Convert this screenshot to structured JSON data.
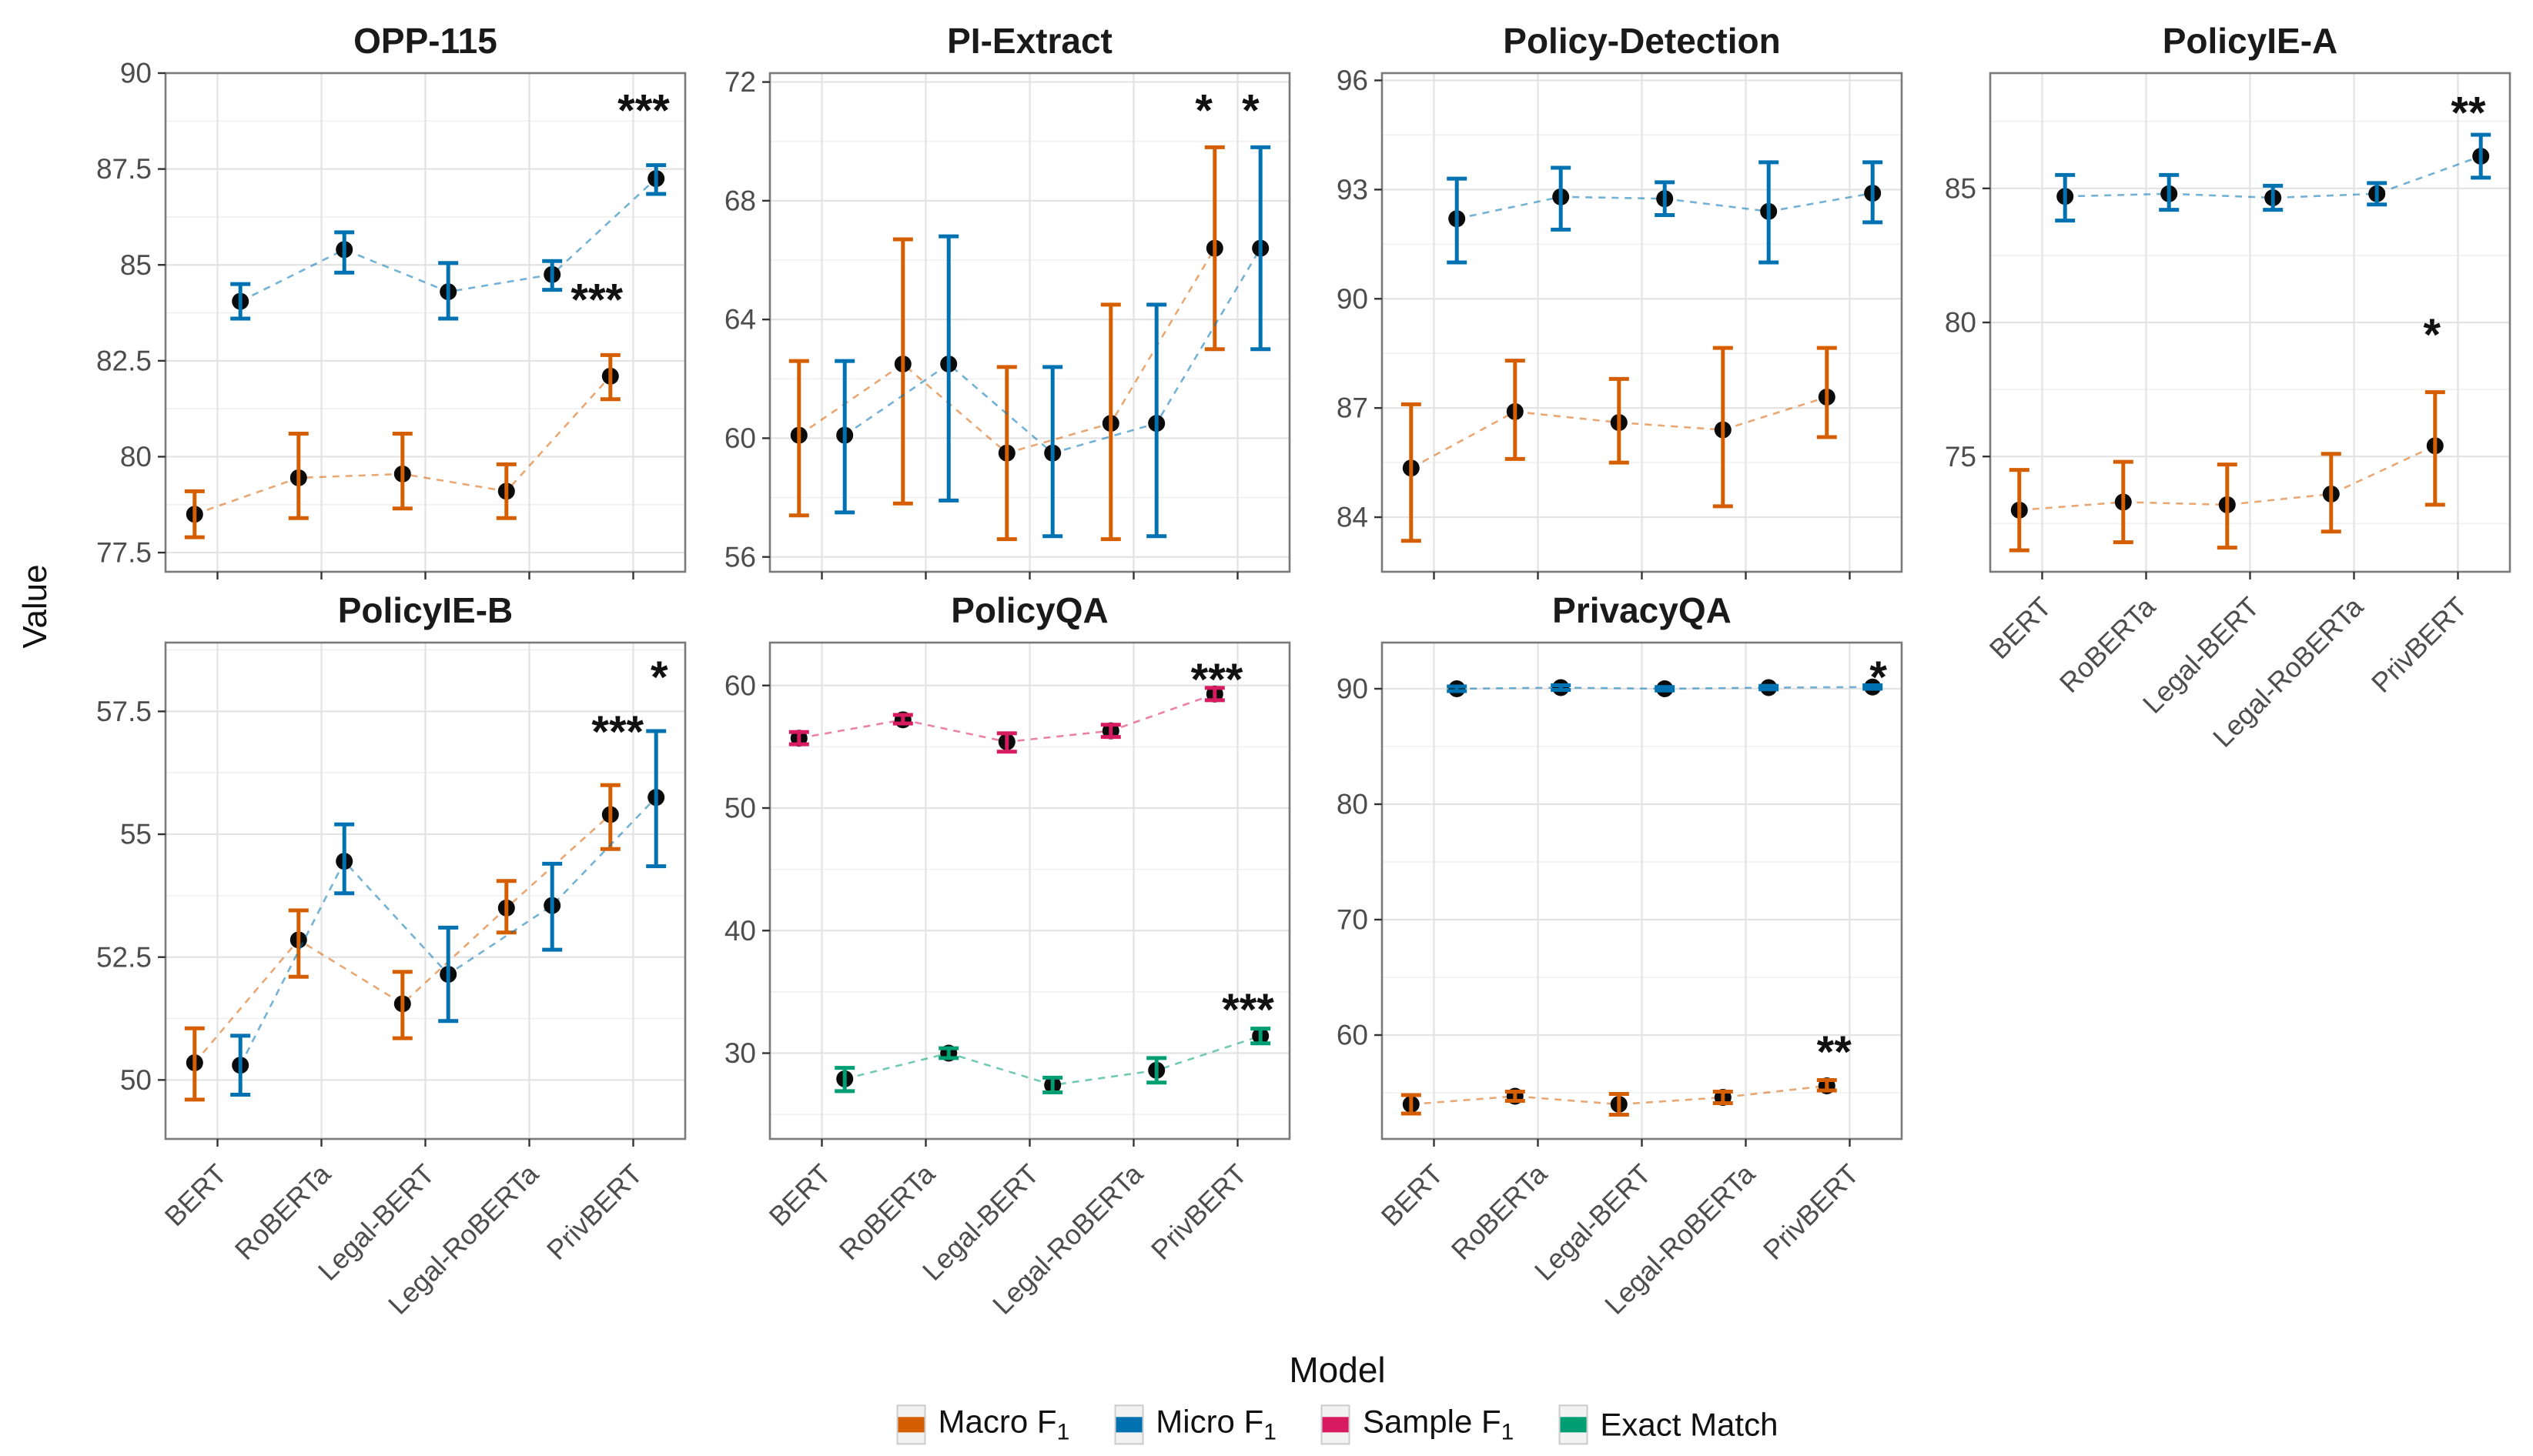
{
  "figure": {
    "y_axis_label": "Value",
    "x_axis_label": "Model",
    "categories": [
      "BERT",
      "RoBERTa",
      "Legal-BERT",
      "Legal-RoBERTa",
      "PrivBERT"
    ],
    "legend": [
      {
        "label": "Macro F",
        "sub": "1",
        "color": "#D55E00"
      },
      {
        "label": "Micro F",
        "sub": "1",
        "color": "#0072B2"
      },
      {
        "label": "Sample F",
        "sub": "1",
        "color": "#D81B60"
      },
      {
        "label": "Exact Match",
        "sub": "",
        "color": "#009E73"
      }
    ]
  },
  "chart_data": [
    {
      "type": "line",
      "title": "OPP-115",
      "grid": {
        "row": 0,
        "col": 0
      },
      "ylim": [
        77.0,
        90.0
      ],
      "yticks": [
        77.5,
        80,
        82.5,
        85,
        87.5,
        90
      ],
      "ytick_labels": [
        "77.5",
        "80",
        "82.5",
        "85",
        "87.5",
        "90"
      ],
      "show_x_labels": false,
      "series": [
        {
          "name": "Macro F1",
          "color": "#D55E00",
          "values": [
            78.5,
            79.45,
            79.55,
            79.1,
            82.1
          ],
          "err_lo": [
            77.9,
            78.4,
            78.65,
            78.4,
            81.5
          ],
          "err_hi": [
            79.1,
            80.6,
            80.6,
            79.8,
            82.65
          ]
        },
        {
          "name": "Micro F1",
          "color": "#0072B2",
          "values": [
            84.05,
            85.4,
            84.3,
            84.75,
            87.25
          ],
          "err_lo": [
            83.6,
            84.8,
            83.6,
            84.35,
            86.85
          ],
          "err_hi": [
            84.5,
            85.85,
            85.05,
            85.1,
            87.6
          ]
        }
      ],
      "annotations": [
        {
          "text": "***",
          "fx": 0.92,
          "fy": 0.05
        },
        {
          "text": "***",
          "fx": 0.83,
          "fy": 0.43
        }
      ]
    },
    {
      "type": "line",
      "title": "PI-Extract",
      "grid": {
        "row": 0,
        "col": 1
      },
      "ylim": [
        55.5,
        72.3
      ],
      "yticks": [
        56,
        60,
        64,
        68,
        72
      ],
      "ytick_labels": [
        "56",
        "60",
        "64",
        "68",
        "72"
      ],
      "show_x_labels": false,
      "series": [
        {
          "name": "Macro F1",
          "color": "#D55E00",
          "values": [
            60.1,
            62.5,
            59.5,
            60.5,
            66.4
          ],
          "err_lo": [
            57.4,
            57.8,
            56.6,
            56.6,
            63.0
          ],
          "err_hi": [
            62.6,
            66.7,
            62.4,
            64.5,
            69.8
          ]
        },
        {
          "name": "Micro F1",
          "color": "#0072B2",
          "values": [
            60.1,
            62.5,
            59.5,
            60.5,
            66.4
          ],
          "err_lo": [
            57.5,
            57.9,
            56.7,
            56.7,
            63.0
          ],
          "err_hi": [
            62.6,
            66.8,
            62.4,
            64.5,
            69.8
          ]
        }
      ],
      "annotations": [
        {
          "text": "*",
          "fx": 0.835,
          "fy": 0.05
        },
        {
          "text": "*",
          "fx": 0.925,
          "fy": 0.05
        }
      ]
    },
    {
      "type": "line",
      "title": "Policy-Detection",
      "grid": {
        "row": 0,
        "col": 2
      },
      "ylim": [
        82.5,
        96.2
      ],
      "yticks": [
        84,
        87,
        90,
        93,
        96
      ],
      "ytick_labels": [
        "84",
        "87",
        "90",
        "93",
        "96"
      ],
      "show_x_labels": false,
      "series": [
        {
          "name": "Macro F1",
          "color": "#D55E00",
          "values": [
            85.35,
            86.9,
            86.6,
            86.4,
            87.3
          ],
          "err_lo": [
            83.35,
            85.6,
            85.5,
            84.3,
            86.2
          ],
          "err_hi": [
            87.1,
            88.3,
            87.8,
            88.65,
            88.65
          ]
        },
        {
          "name": "Micro F1",
          "color": "#0072B2",
          "values": [
            92.2,
            92.8,
            92.75,
            92.4,
            92.9
          ],
          "err_lo": [
            91.0,
            91.9,
            92.3,
            91.0,
            92.1
          ],
          "err_hi": [
            93.3,
            93.6,
            93.2,
            93.75,
            93.75
          ]
        }
      ],
      "annotations": []
    },
    {
      "type": "line",
      "title": "PolicyIE-A",
      "grid": {
        "row": 0,
        "col": 3
      },
      "ylim": [
        70.7,
        89.3
      ],
      "yticks": [
        75,
        80,
        85
      ],
      "ytick_labels": [
        "75",
        "80",
        "85"
      ],
      "show_x_labels": true,
      "series": [
        {
          "name": "Macro F1",
          "color": "#D55E00",
          "values": [
            73.0,
            73.3,
            73.2,
            73.6,
            75.4
          ],
          "err_lo": [
            71.5,
            71.8,
            71.6,
            72.2,
            73.2
          ],
          "err_hi": [
            74.5,
            74.8,
            74.7,
            75.1,
            77.4
          ]
        },
        {
          "name": "Micro F1",
          "color": "#0072B2",
          "values": [
            84.7,
            84.8,
            84.65,
            84.8,
            86.2
          ],
          "err_lo": [
            83.8,
            84.2,
            84.2,
            84.4,
            85.4
          ],
          "err_hi": [
            85.5,
            85.5,
            85.1,
            85.2,
            87.0
          ]
        }
      ],
      "annotations": [
        {
          "text": "**",
          "fx": 0.92,
          "fy": 0.055
        },
        {
          "text": "*",
          "fx": 0.85,
          "fy": 0.5
        }
      ]
    },
    {
      "type": "line",
      "title": "PolicyIE-B",
      "grid": {
        "row": 1,
        "col": 0
      },
      "ylim": [
        48.8,
        58.9
      ],
      "yticks": [
        50,
        52.5,
        55,
        57.5
      ],
      "ytick_labels": [
        "50",
        "52.5",
        "55",
        "57.5"
      ],
      "show_x_labels": true,
      "series": [
        {
          "name": "Macro F1",
          "color": "#D55E00",
          "values": [
            50.35,
            52.85,
            51.55,
            53.5,
            55.4
          ],
          "err_lo": [
            49.6,
            52.1,
            50.85,
            53.0,
            54.7
          ],
          "err_hi": [
            51.05,
            53.45,
            52.2,
            54.05,
            56.0
          ]
        },
        {
          "name": "Micro F1",
          "color": "#0072B2",
          "values": [
            50.3,
            54.45,
            52.15,
            53.55,
            55.75
          ],
          "err_lo": [
            49.7,
            53.8,
            51.2,
            52.65,
            54.35
          ],
          "err_hi": [
            50.9,
            55.2,
            53.1,
            54.4,
            57.1
          ]
        }
      ],
      "annotations": [
        {
          "text": "*",
          "fx": 0.95,
          "fy": 0.045
        },
        {
          "text": "***",
          "fx": 0.87,
          "fy": 0.155
        }
      ]
    },
    {
      "type": "line",
      "title": "PolicyQA",
      "grid": {
        "row": 1,
        "col": 1
      },
      "ylim": [
        23.0,
        63.5
      ],
      "yticks": [
        30,
        40,
        50,
        60
      ],
      "ytick_labels": [
        "30",
        "40",
        "50",
        "60"
      ],
      "show_x_labels": true,
      "series": [
        {
          "name": "Sample F1",
          "color": "#D81B60",
          "values": [
            55.7,
            57.2,
            55.4,
            56.3,
            59.3
          ],
          "err_lo": [
            55.2,
            56.9,
            54.6,
            55.8,
            58.8
          ],
          "err_hi": [
            56.2,
            57.6,
            56.1,
            56.8,
            59.8
          ]
        },
        {
          "name": "Exact Match",
          "color": "#009E73",
          "values": [
            27.9,
            30.0,
            27.4,
            28.6,
            31.4
          ],
          "err_lo": [
            26.9,
            29.6,
            26.8,
            27.6,
            30.8
          ],
          "err_hi": [
            28.8,
            30.4,
            28.0,
            29.6,
            32.0
          ]
        }
      ],
      "annotations": [
        {
          "text": "***",
          "fx": 0.86,
          "fy": 0.05
        },
        {
          "text": "***",
          "fx": 0.92,
          "fy": 0.715
        }
      ]
    },
    {
      "type": "line",
      "title": "PrivacyQA",
      "grid": {
        "row": 1,
        "col": 2
      },
      "ylim": [
        51.0,
        94.0
      ],
      "yticks": [
        60,
        70,
        80,
        90
      ],
      "ytick_labels": [
        "60",
        "70",
        "80",
        "90"
      ],
      "show_x_labels": true,
      "series": [
        {
          "name": "Macro F1",
          "color": "#D55E00",
          "values": [
            54.0,
            54.7,
            54.0,
            54.6,
            55.6
          ],
          "err_lo": [
            53.2,
            54.3,
            53.1,
            54.1,
            55.2
          ],
          "err_hi": [
            54.8,
            55.1,
            54.9,
            55.1,
            56.1
          ]
        },
        {
          "name": "Micro F1",
          "color": "#0072B2",
          "values": [
            90.0,
            90.1,
            90.0,
            90.1,
            90.15
          ],
          "err_lo": [
            89.8,
            89.9,
            89.85,
            89.95,
            90.0
          ],
          "err_hi": [
            90.2,
            90.3,
            90.15,
            90.25,
            90.3
          ]
        }
      ],
      "annotations": [
        {
          "text": "*",
          "fx": 0.955,
          "fy": 0.045
        },
        {
          "text": "**",
          "fx": 0.87,
          "fy": 0.8
        }
      ]
    }
  ]
}
